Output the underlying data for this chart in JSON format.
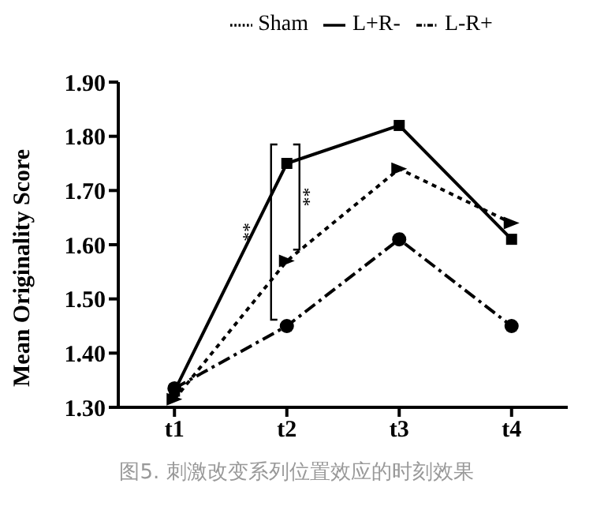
{
  "chart_data": {
    "type": "line",
    "ylabel": "Mean Originality Score",
    "categories": [
      "t1",
      "t2",
      "t3",
      "t4"
    ],
    "series": [
      {
        "name": "L-R+",
        "color": "#000000",
        "values": [
          1.335,
          1.45,
          1.61,
          1.45
        ],
        "marker": "circle",
        "line_style": "dashed"
      },
      {
        "name": "L+R-",
        "color": "#000000",
        "values": [
          1.33,
          1.75,
          1.82,
          1.61
        ],
        "marker": "square",
        "line_style": "solid"
      },
      {
        "name": "Sham",
        "color": "#000000",
        "values": [
          1.315,
          1.57,
          1.74,
          1.64
        ],
        "marker": "triangle",
        "line_style": "dotted"
      }
    ],
    "ylim": [
      1.3,
      1.9
    ],
    "yticks": [
      {
        "value": 1.3,
        "label": "1.30"
      },
      {
        "value": 1.4,
        "label": "1.40"
      },
      {
        "value": 1.5,
        "label": "1.50"
      },
      {
        "value": 1.6,
        "label": "1.60"
      },
      {
        "value": 1.7,
        "label": "1.70"
      },
      {
        "value": 1.8,
        "label": "1.80"
      },
      {
        "value": 1.9,
        "label": "1.90"
      }
    ],
    "grid": false,
    "legend": "top",
    "annotations": [
      "**",
      "**",
      "图5. 刺激改变系列位置效应的时刻效果"
    ]
  }
}
